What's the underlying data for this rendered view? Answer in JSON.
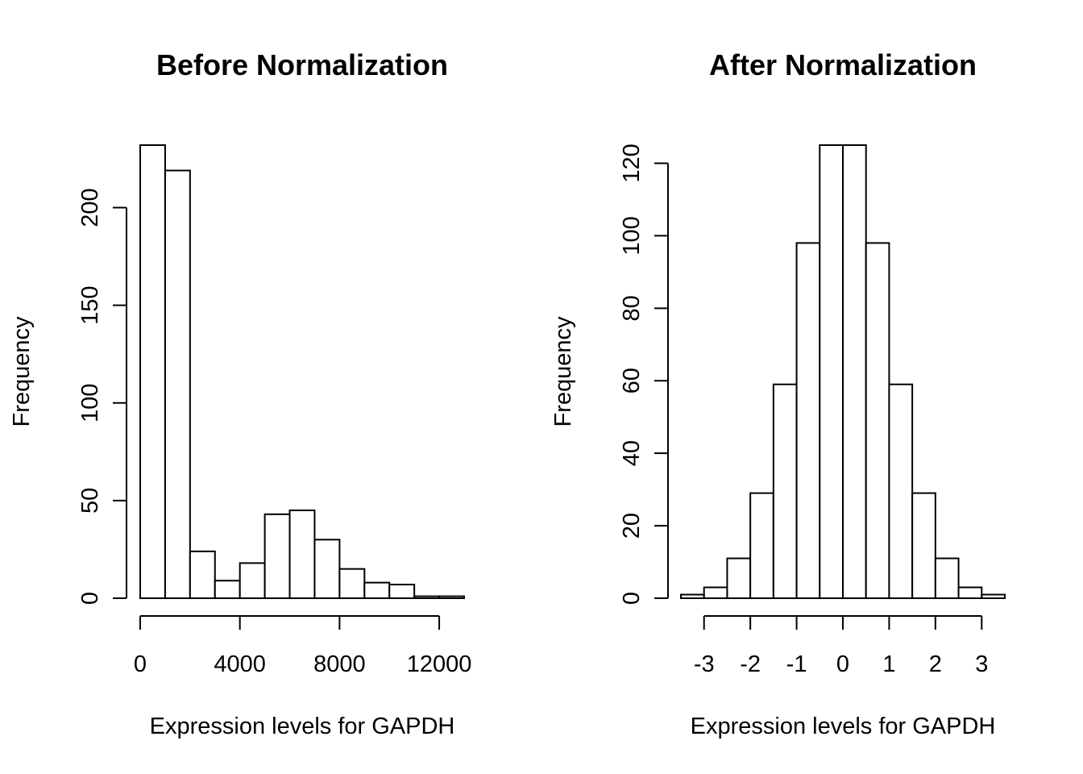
{
  "chart_data": [
    {
      "type": "bar",
      "title": "Before Normalization",
      "xlabel": "Expression levels for GAPDH",
      "ylabel": "Frequency",
      "bin_edges": [
        0,
        1000,
        2000,
        3000,
        4000,
        5000,
        6000,
        7000,
        8000,
        9000,
        10000,
        11000,
        12000,
        13000
      ],
      "values": [
        232,
        219,
        24,
        9,
        18,
        43,
        45,
        30,
        15,
        8,
        7,
        1,
        1
      ],
      "xlim": [
        0,
        13000
      ],
      "ylim": [
        0,
        232
      ],
      "xticks": [
        0,
        4000,
        8000,
        12000
      ],
      "xtick_labels": [
        "0",
        "4000",
        "8000",
        "12000"
      ],
      "x_axis_range": [
        0,
        12000
      ],
      "yticks": [
        0,
        50,
        100,
        150,
        200
      ],
      "ytick_labels": [
        "0",
        "50",
        "100",
        "150",
        "200"
      ],
      "grid": false,
      "legend": "none"
    },
    {
      "type": "bar",
      "title": "After Normalization",
      "xlabel": "Expression levels for GAPDH",
      "ylabel": "Frequency",
      "bin_edges": [
        -3.5,
        -3.0,
        -2.5,
        -2.0,
        -1.5,
        -1.0,
        -0.5,
        0.0,
        0.5,
        1.0,
        1.5,
        2.0,
        2.5,
        3.0,
        3.5
      ],
      "values": [
        1,
        3,
        11,
        29,
        59,
        98,
        125,
        125,
        98,
        59,
        29,
        11,
        3,
        1
      ],
      "xlim": [
        -3.5,
        3.5
      ],
      "ylim": [
        0,
        125
      ],
      "xticks": [
        -3,
        -2,
        -1,
        0,
        1,
        2,
        3
      ],
      "xtick_labels": [
        "-3",
        "-2",
        "-1",
        "0",
        "1",
        "2",
        "3"
      ],
      "x_axis_range": [
        -3,
        3
      ],
      "yticks": [
        0,
        20,
        40,
        60,
        80,
        100,
        120
      ],
      "ytick_labels": [
        "0",
        "20",
        "40",
        "60",
        "80",
        "100",
        "120"
      ],
      "grid": false,
      "legend": "none"
    }
  ]
}
